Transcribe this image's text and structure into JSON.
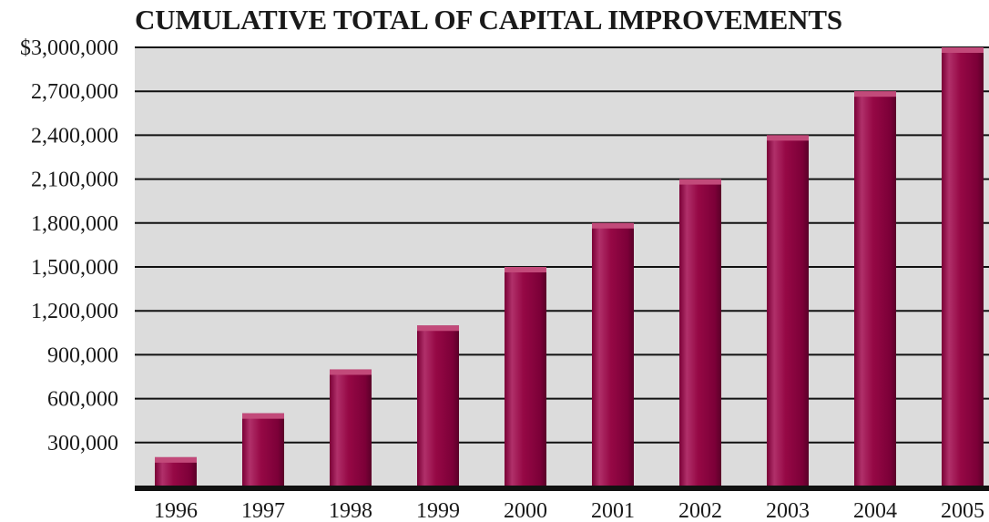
{
  "chart_data": {
    "type": "bar",
    "title": "CUMULATIVE TOTAL OF CAPITAL IMPROVEMENTS",
    "xlabel": "",
    "ylabel": "",
    "categories": [
      "1996",
      "1997",
      "1998",
      "1999",
      "2000",
      "2001",
      "2002",
      "2003",
      "2004",
      "2005"
    ],
    "values": [
      200000,
      500000,
      800000,
      1100000,
      1500000,
      1800000,
      2100000,
      2400000,
      2700000,
      3000000
    ],
    "ylim": [
      0,
      3000000
    ],
    "yticks": [
      300000,
      600000,
      900000,
      1200000,
      1500000,
      1800000,
      2100000,
      2400000,
      2700000,
      3000000
    ],
    "ytick_labels": [
      "300,000",
      "600,000",
      "900,000",
      "1,200,000",
      "1,500,000",
      "1,800,000",
      "2,100,000",
      "2,400,000",
      "2,700,000",
      "$3,000,000"
    ],
    "grid": true,
    "legend": "none",
    "colors": {
      "bar": "#9a0a4a",
      "bar_highlight": "#c24a7a",
      "bar_shadow": "#5a0028",
      "plot_background": "#dcdcdc",
      "gridline": "#111111",
      "baseline": "#111111"
    }
  }
}
